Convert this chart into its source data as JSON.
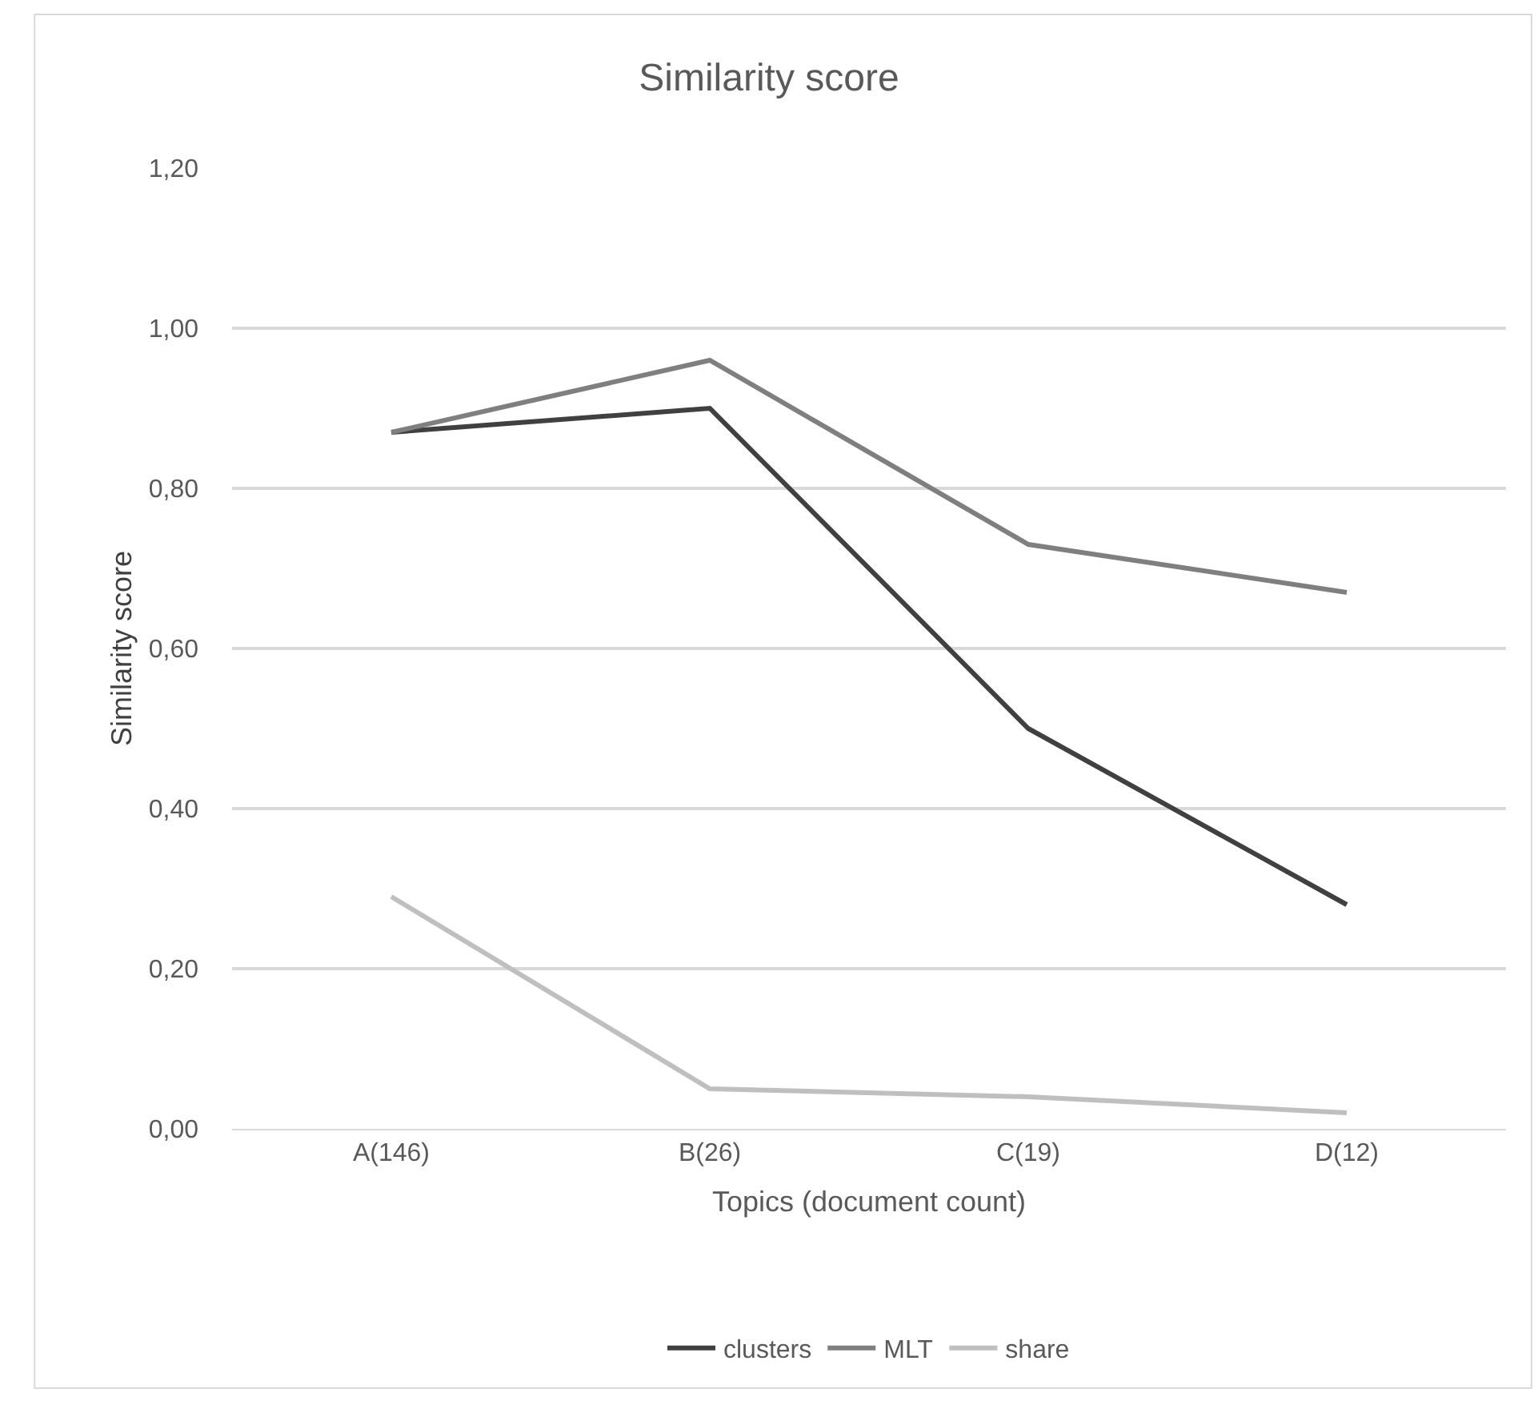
{
  "chart_data": {
    "type": "line",
    "title": "Similarity score",
    "xlabel": "Topics (document count)",
    "ylabel": "Similarity score",
    "categories": [
      "A(146)",
      "B(26)",
      "C(19)",
      "D(12)"
    ],
    "series": [
      {
        "name": "clusters",
        "color": "#404040",
        "values": [
          0.87,
          0.9,
          0.5,
          0.28
        ]
      },
      {
        "name": "MLT",
        "color": "#7f7f7f",
        "values": [
          0.87,
          0.96,
          0.73,
          0.67
        ]
      },
      {
        "name": "share",
        "color": "#bfbfbf",
        "values": [
          0.29,
          0.05,
          0.04,
          0.02
        ]
      }
    ],
    "ylim": [
      0,
      1.2
    ],
    "yticks": [
      {
        "value": 0,
        "label": "0,00"
      },
      {
        "value": 0.2,
        "label": "0,20"
      },
      {
        "value": 0.4,
        "label": "0,40"
      },
      {
        "value": 0.6,
        "label": "0,60"
      },
      {
        "value": 0.8,
        "label": "0,80"
      },
      {
        "value": 1.0,
        "label": "1,00"
      },
      {
        "value": 1.2,
        "label": "1,20"
      }
    ],
    "grid": "y",
    "legend": "bottom",
    "marker": "none",
    "line_style": "solid"
  }
}
